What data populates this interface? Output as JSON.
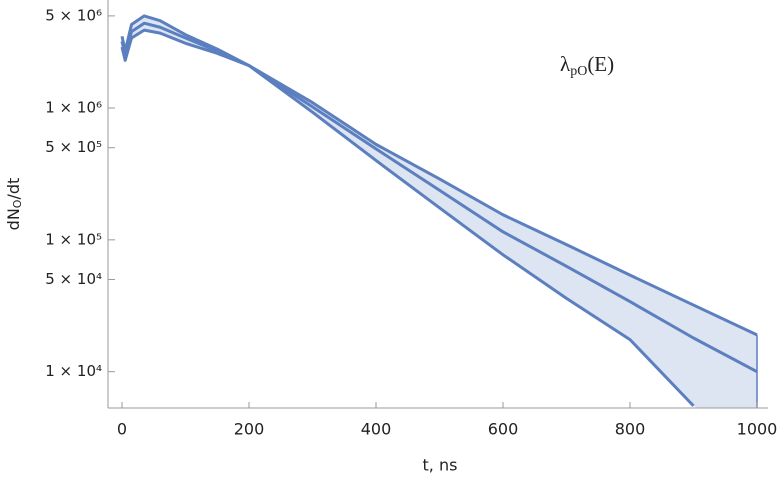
{
  "chart_data": {
    "type": "line",
    "xlabel": "t, ns",
    "ylabel": {
      "main": "dN",
      "sub": "O",
      "tail": "/dt"
    },
    "annotation": {
      "main": "λ",
      "sub": "pO",
      "tail": "(E)"
    },
    "x": [
      0,
      5,
      15,
      35,
      60,
      100,
      150,
      200,
      300,
      400,
      500,
      600,
      700,
      800,
      900,
      1000
    ],
    "series": [
      {
        "color": "#5b7fbf",
        "values": [
          3500000,
          2700000,
          4300000,
          5000000,
          4600000,
          3600000,
          2800000,
          2100000,
          930000,
          400000,
          175000,
          77000,
          36000,
          17500,
          5500,
          null
        ]
      },
      {
        "color": "#5b7fbf",
        "values": [
          3200000,
          2500000,
          3800000,
          4400000,
          4100000,
          3400000,
          2700000,
          2100000,
          1020000,
          490000,
          238000,
          115000,
          63000,
          34000,
          18000,
          10000
        ]
      },
      {
        "color": "#5b7fbf",
        "values": [
          2900000,
          2300000,
          3400000,
          3900000,
          3700000,
          3100000,
          2600000,
          2100000,
          1100000,
          530000,
          290000,
          155000,
          92000,
          54000,
          32000,
          19000
        ]
      }
    ],
    "fill": "#dde4f2",
    "log_y": true,
    "xlim": [
      -22,
      1005
    ],
    "ylim": [
      5300,
      6600000
    ],
    "xticks": [
      0,
      200,
      400,
      600,
      800,
      1000
    ],
    "yticks": [
      {
        "value": 10000,
        "label": "1 × 10⁴"
      },
      {
        "value": 50000,
        "label": "5 × 10⁴"
      },
      {
        "value": 100000,
        "label": "1 × 10⁵"
      },
      {
        "value": 500000,
        "label": "5 × 10⁵"
      },
      {
        "value": 1000000,
        "label": "1 × 10⁶"
      },
      {
        "value": 5000000,
        "label": "5 × 10⁶"
      }
    ]
  }
}
